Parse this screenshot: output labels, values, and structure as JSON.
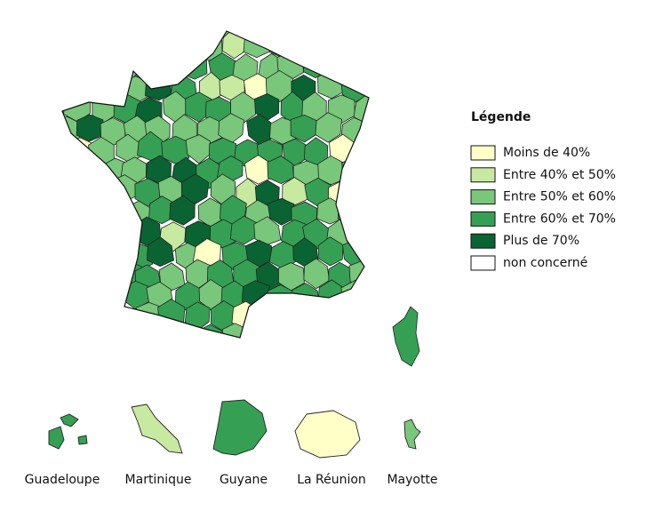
{
  "legend": {
    "title": "Légende",
    "items": [
      {
        "label": "Moins de 40%",
        "color": "#ffffc8"
      },
      {
        "label": "Entre 40% et 50%",
        "color": "#c7e9a0"
      },
      {
        "label": "Entre 50% et 60%",
        "color": "#79c77a"
      },
      {
        "label": "Entre 60% et 70%",
        "color": "#35a054"
      },
      {
        "label": "Plus de 70%",
        "color": "#0a6332"
      },
      {
        "label": "non concerné",
        "color": "#ffffff"
      }
    ]
  },
  "overseas": [
    {
      "label": "Guadeloupe",
      "category": 3
    },
    {
      "label": "Martinique",
      "category": 1
    },
    {
      "label": "Guyane",
      "category": 3
    },
    {
      "label": "La Réunion",
      "category": 0
    },
    {
      "label": "Mayotte",
      "category": 2
    }
  ]
}
